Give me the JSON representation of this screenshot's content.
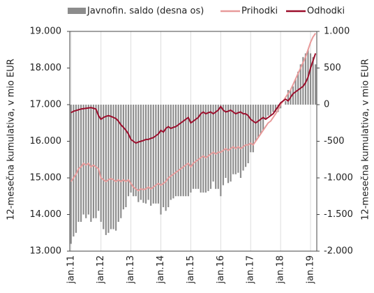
{
  "chart_data": {
    "type": "bar-line",
    "legend": "top",
    "y_label": "12-mesečna kumulativa, v mio EUR",
    "y2_label": "12-mesečna kumulativa, v mio EUR",
    "categories": [
      "jan.11",
      null,
      null,
      null,
      null,
      null,
      null,
      null,
      null,
      null,
      null,
      null,
      "jan.12",
      null,
      null,
      null,
      null,
      null,
      null,
      null,
      null,
      null,
      null,
      null,
      "jan.13",
      null,
      null,
      null,
      null,
      null,
      null,
      null,
      null,
      null,
      null,
      null,
      "jan.14",
      null,
      null,
      null,
      null,
      null,
      null,
      null,
      null,
      null,
      null,
      null,
      "jan.15",
      null,
      null,
      null,
      null,
      null,
      null,
      null,
      null,
      null,
      null,
      null,
      "jan.16",
      null,
      null,
      null,
      null,
      null,
      null,
      null,
      null,
      null,
      null,
      null,
      "jan.17",
      null,
      null,
      null,
      null,
      null,
      null,
      null,
      null,
      null,
      null,
      null,
      "jan.18",
      null,
      null,
      null,
      null,
      null,
      null,
      null,
      null,
      null,
      null,
      null,
      "jan.19",
      null,
      null
    ],
    "series": [
      {
        "name": "Javnofin. saldo (desna os)",
        "color": "#8c8c8c",
        "kind": "bar",
        "axis": "y2",
        "values": [
          -1900,
          -1800,
          -1750,
          -1600,
          -1600,
          -1500,
          -1550,
          -1500,
          -1600,
          -1550,
          -1550,
          -1450,
          -1600,
          -1700,
          -1780,
          -1750,
          -1700,
          -1700,
          -1720,
          -1600,
          -1550,
          -1430,
          -1400,
          -1250,
          -1200,
          -1250,
          -1250,
          -1330,
          -1300,
          -1340,
          -1350,
          -1300,
          -1380,
          -1350,
          -1350,
          -1350,
          -1500,
          -1400,
          -1450,
          -1400,
          -1300,
          -1280,
          -1250,
          -1250,
          -1250,
          -1250,
          -1250,
          -1250,
          -1200,
          -1150,
          -1150,
          -1150,
          -1200,
          -1200,
          -1200,
          -1180,
          -1150,
          -1050,
          -1150,
          -1150,
          -1250,
          -1100,
          -1000,
          -1070,
          -1050,
          -950,
          -950,
          -930,
          -1000,
          -900,
          -850,
          -800,
          -650,
          -650,
          -500,
          -450,
          -400,
          -350,
          -200,
          -150,
          -150,
          -100,
          -100,
          -100,
          -50,
          0,
          50,
          200,
          200,
          250,
          350,
          450,
          550,
          650,
          700,
          750,
          700,
          650,
          550
        ]
      },
      {
        "name": "Prihodki",
        "color": "#e89a9a",
        "kind": "line",
        "values": [
          14900,
          15000,
          15100,
          15250,
          15300,
          15400,
          15350,
          15400,
          15300,
          15350,
          15300,
          15250,
          15000,
          14950,
          14900,
          14950,
          14980,
          14950,
          14900,
          14950,
          14900,
          14950,
          14900,
          14950,
          14850,
          14750,
          14700,
          14650,
          14700,
          14680,
          14700,
          14750,
          14700,
          14750,
          14800,
          14850,
          14800,
          14850,
          14900,
          15000,
          15050,
          15100,
          15150,
          15200,
          15250,
          15300,
          15350,
          15400,
          15300,
          15400,
          15450,
          15500,
          15550,
          15600,
          15550,
          15600,
          15650,
          15700,
          15650,
          15700,
          15700,
          15750,
          15800,
          15750,
          15800,
          15850,
          15800,
          15850,
          15800,
          15850,
          15900,
          15900,
          15950,
          15900,
          16000,
          16100,
          16200,
          16300,
          16400,
          16500,
          16550,
          16650,
          16750,
          16850,
          17000,
          17100,
          17200,
          17300,
          17400,
          17550,
          17700,
          17850,
          18000,
          18150,
          18300,
          18500,
          18700,
          18850,
          18950
        ]
      },
      {
        "name": "Odhodki",
        "color": "#9b0d2b",
        "kind": "line",
        "values": [
          16780,
          16820,
          16840,
          16860,
          16880,
          16890,
          16900,
          16910,
          16920,
          16900,
          16880,
          16700,
          16600,
          16650,
          16680,
          16700,
          16680,
          16650,
          16620,
          16550,
          16450,
          16380,
          16300,
          16200,
          16050,
          16000,
          15950,
          15980,
          16000,
          16020,
          16050,
          16050,
          16080,
          16100,
          16150,
          16200,
          16300,
          16250,
          16350,
          16400,
          16350,
          16380,
          16400,
          16450,
          16500,
          16550,
          16600,
          16650,
          16500,
          16550,
          16600,
          16650,
          16750,
          16800,
          16750,
          16780,
          16800,
          16750,
          16800,
          16850,
          16950,
          16850,
          16800,
          16820,
          16850,
          16800,
          16750,
          16780,
          16800,
          16750,
          16750,
          16700,
          16600,
          16550,
          16500,
          16550,
          16600,
          16650,
          16600,
          16650,
          16700,
          16750,
          16850,
          16950,
          17050,
          17100,
          17150,
          17100,
          17200,
          17300,
          17350,
          17400,
          17450,
          17500,
          17600,
          17750,
          18000,
          18200,
          18400
        ]
      }
    ],
    "ylim": [
      13000,
      19000
    ],
    "yticks": [
      {
        "value": 13000,
        "label": "13.000"
      },
      {
        "value": 14000,
        "label": "14.000"
      },
      {
        "value": 15000,
        "label": "15.000"
      },
      {
        "value": 16000,
        "label": "16.000"
      },
      {
        "value": 17000,
        "label": "17.000"
      },
      {
        "value": 18000,
        "label": "18.000"
      },
      {
        "value": 19000,
        "label": "19.000"
      }
    ],
    "y2lim": [
      -2000,
      1000
    ],
    "y2ticks": [
      {
        "value": -2000,
        "label": "-2.000"
      },
      {
        "value": -1500,
        "label": "-1.500"
      },
      {
        "value": -1000,
        "label": "-1.000"
      },
      -500,
      0,
      500,
      {
        "value": 1000,
        "label": "1.000"
      }
    ],
    "xgrid": true
  }
}
